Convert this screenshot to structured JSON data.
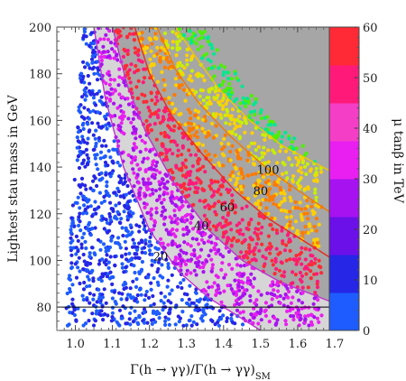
{
  "chart_data": {
    "type": "scatter",
    "xlabel": "Γ(h → γγ)/Γ(h → γγ)",
    "xlabel_sub": "SM",
    "ylabel": "Lightest stau mass in GeV",
    "xlim": [
      0.95,
      1.7
    ],
    "ylim": [
      70,
      200
    ],
    "x_ticks": [
      "1.0",
      "1.1",
      "1.2",
      "1.3",
      "1.4",
      "1.5",
      "1.6",
      "1.7"
    ],
    "x_tick_values": [
      1.0,
      1.1,
      1.2,
      1.3,
      1.4,
      1.5,
      1.6,
      1.7
    ],
    "y_ticks": [
      "80",
      "100",
      "120",
      "140",
      "160",
      "180",
      "200"
    ],
    "y_tick_values": [
      80,
      100,
      120,
      140,
      160,
      180,
      200
    ],
    "horizontal_line": 80,
    "colorbar": {
      "label": "μ tanβ in TeV",
      "range": [
        0,
        60
      ],
      "ticks": [
        "0",
        "10",
        "20",
        "30",
        "40",
        "50",
        "60"
      ],
      "tick_values": [
        0,
        10,
        20,
        30,
        40,
        50,
        60
      ],
      "bands": [
        "#1e5cff",
        "#2626e6",
        "#6b10e8",
        "#a712f0",
        "#e81ff0",
        "#f43ec6",
        "#ff1a7a",
        "#ff2a36"
      ]
    },
    "contours": [
      {
        "label": "20",
        "color": "#c030d0",
        "label_at": [
          1.23,
          102
        ],
        "points": [
          [
            1.05,
            200
          ],
          [
            1.08,
            170
          ],
          [
            1.13,
            140
          ],
          [
            1.2,
            113
          ],
          [
            1.28,
            95
          ],
          [
            1.36,
            84
          ],
          [
            1.42,
            78
          ],
          [
            1.45,
            75
          ]
        ]
      },
      {
        "label": "40",
        "color": "#c030d0",
        "label_at": [
          1.34,
          115
        ],
        "points": [
          [
            1.1,
            200
          ],
          [
            1.14,
            175
          ],
          [
            1.19,
            155
          ],
          [
            1.27,
            132
          ],
          [
            1.36,
            113
          ],
          [
            1.45,
            100
          ],
          [
            1.55,
            91
          ],
          [
            1.63,
            86
          ]
        ]
      },
      {
        "label": "60",
        "color": "#e82a20",
        "label_at": [
          1.41,
          123
        ],
        "points": [
          [
            1.16,
            200
          ],
          [
            1.2,
            180
          ],
          [
            1.26,
            162
          ],
          [
            1.34,
            146
          ],
          [
            1.43,
            130
          ],
          [
            1.52,
            118
          ],
          [
            1.62,
            108
          ]
        ]
      },
      {
        "label": "80",
        "color": "#f07a00",
        "label_at": [
          1.5,
          130
        ],
        "points": [
          [
            1.22,
            200
          ],
          [
            1.27,
            182
          ],
          [
            1.33,
            168
          ],
          [
            1.42,
            153
          ],
          [
            1.52,
            139
          ],
          [
            1.62,
            128
          ]
        ]
      },
      {
        "label": "100",
        "color": "#f0c800",
        "label_at": [
          1.52,
          139
        ],
        "points": [
          [
            1.27,
            200
          ],
          [
            1.33,
            186
          ],
          [
            1.39,
            173
          ],
          [
            1.47,
            160
          ],
          [
            1.56,
            149
          ],
          [
            1.62,
            144
          ]
        ]
      }
    ],
    "regions": [
      {
        "fill": "#d6d6d6",
        "upper_left": 1.05
      },
      {
        "fill": "#a6a6a6",
        "upper_left": 1.1
      }
    ],
    "point_count": 2600,
    "point_colors": [
      "#1e5cff",
      "#2626e6",
      "#6b10e8",
      "#a712f0",
      "#e81ff0",
      "#ff1a7a",
      "#ff2a36",
      "#ff7a00",
      "#ffd000",
      "#c8f000",
      "#4cf000",
      "#00e890"
    ]
  }
}
